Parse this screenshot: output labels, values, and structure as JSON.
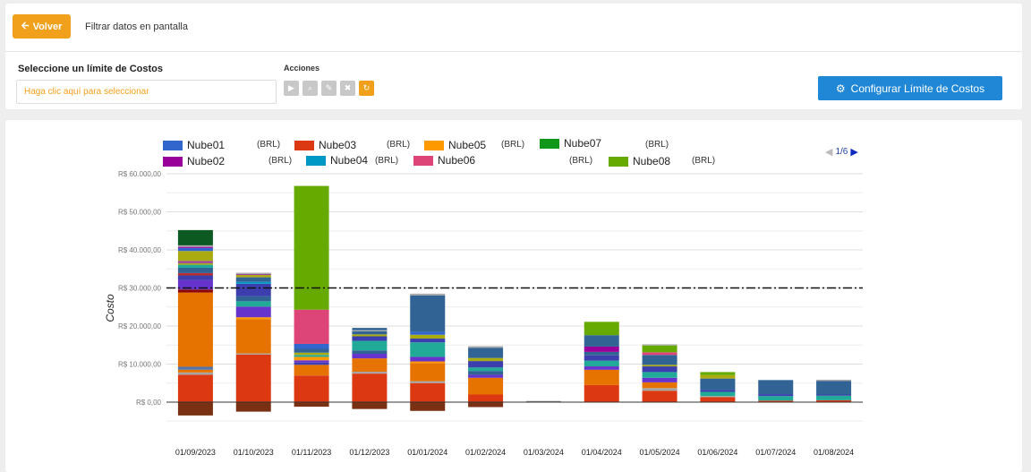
{
  "header": {
    "back_label": "Volver",
    "back_icon": "arrow-left-icon",
    "filter_label": "Filtrar datos en pantalla"
  },
  "limit": {
    "title": "Seleccione un límite de Costos",
    "placeholder": "Haga clic aquí para seleccionar"
  },
  "actions": {
    "label": "Acciones",
    "buttons": [
      {
        "icon": "play-icon",
        "glyph": "▶"
      },
      {
        "icon": "search-icon",
        "glyph": "⌕"
      },
      {
        "icon": "edit-icon",
        "glyph": "✎"
      },
      {
        "icon": "delete-icon",
        "glyph": "✖"
      },
      {
        "icon": "refresh-icon",
        "glyph": "↻"
      }
    ]
  },
  "config_button": {
    "label": "Configurar Límite de Costos",
    "icon": "gear-icon"
  },
  "legend": {
    "pager": "1/6",
    "items": [
      {
        "name": "Nube01",
        "unit": "(BRL)",
        "color": "#3366cc"
      },
      {
        "name": "Nube03",
        "unit": "(BRL)",
        "color": "#dc3912"
      },
      {
        "name": "Nube05",
        "unit": "(BRL)",
        "color": "#ff9900"
      },
      {
        "name": "Nube07",
        "unit": "(BRL)",
        "color": "#109618"
      },
      {
        "name": "Nube02",
        "unit": "(BRL)",
        "color": "#990099"
      },
      {
        "name": "Nube04",
        "unit": "(BRL)",
        "color": "#0099c6"
      },
      {
        "name": "Nube06",
        "unit": "(BRL)",
        "color": "#dd4477"
      },
      {
        "name": "",
        "unit": "(BRL)",
        "color": ""
      },
      {
        "name": "Nube08",
        "unit": "(BRL)",
        "color": "#66aa00"
      }
    ]
  },
  "chart_data": {
    "type": "bar",
    "stacked": true,
    "ylabel": "Costo",
    "ylim": [
      -4000,
      62000
    ],
    "yticks": [
      "R$ 0,00",
      "R$ 10.000,00",
      "R$ 20.000,00",
      "R$ 30.000,00",
      "R$ 40.000,00",
      "R$ 50.000,00",
      "R$ 60.000,00"
    ],
    "ytick_values": [
      0,
      10000,
      20000,
      30000,
      40000,
      50000,
      60000
    ],
    "limit_line": 30000,
    "grid": true,
    "categories": [
      "01/09/2023",
      "01/10/2023",
      "01/11/2023",
      "01/12/2023",
      "01/01/2024",
      "01/02/2024",
      "01/03/2024",
      "01/04/2024",
      "01/05/2024",
      "01/06/2024",
      "01/07/2024",
      "01/08/2024"
    ],
    "negatives": [
      -3500,
      -2500,
      -1200,
      -1800,
      -2300,
      -1300,
      0,
      0,
      0,
      0,
      0,
      0
    ],
    "segments": [
      [
        [
          7200,
          "#dc3912"
        ],
        [
          600,
          "#a5a5a5"
        ],
        [
          700,
          "#e67300"
        ],
        [
          800,
          "#5574a6"
        ],
        [
          19500,
          "#e67300"
        ],
        [
          800,
          "#8b0707"
        ],
        [
          2500,
          "#6633cc"
        ],
        [
          1200,
          "#3b3eac"
        ],
        [
          600,
          "#b82e2e"
        ],
        [
          1400,
          "#316395"
        ],
        [
          800,
          "#22aa99"
        ],
        [
          400,
          "#aaaa11"
        ],
        [
          600,
          "#994499"
        ],
        [
          2600,
          "#aaaa11"
        ],
        [
          800,
          "#3366cc"
        ],
        [
          300,
          "#990099"
        ],
        [
          400,
          "#aaaaaa"
        ],
        [
          4000,
          "#0c5922"
        ]
      ],
      [
        [
          12500,
          "#dc3912"
        ],
        [
          300,
          "#a5a5a5"
        ],
        [
          9000,
          "#e67300"
        ],
        [
          500,
          "#ff9900"
        ],
        [
          2800,
          "#6633cc"
        ],
        [
          1400,
          "#22aa99"
        ],
        [
          1300,
          "#316395"
        ],
        [
          3300,
          "#3b3eac"
        ],
        [
          500,
          "#0099c6"
        ],
        [
          1200,
          "#316395"
        ],
        [
          600,
          "#aaaa11"
        ],
        [
          300,
          "#994499"
        ],
        [
          300,
          "#aaaaaa"
        ]
      ],
      [
        [
          7000,
          "#dc3912"
        ],
        [
          2800,
          "#e67300"
        ],
        [
          600,
          "#3b3eac"
        ],
        [
          600,
          "#6633cc"
        ],
        [
          900,
          "#ff9900"
        ],
        [
          500,
          "#22aa99"
        ],
        [
          600,
          "#aaaa11"
        ],
        [
          1000,
          "#316395"
        ],
        [
          1300,
          "#3366cc"
        ],
        [
          9000,
          "#dd4477"
        ],
        [
          32500,
          "#66aa00"
        ]
      ],
      [
        [
          7500,
          "#dc3912"
        ],
        [
          500,
          "#a5a5a5"
        ],
        [
          3500,
          "#e67300"
        ],
        [
          1200,
          "#6633cc"
        ],
        [
          900,
          "#316395"
        ],
        [
          2500,
          "#22aa99"
        ],
        [
          1200,
          "#3b3eac"
        ],
        [
          500,
          "#aaaa11"
        ],
        [
          800,
          "#316395"
        ],
        [
          300,
          "#aaaaaa"
        ],
        [
          600,
          "#316395"
        ]
      ],
      [
        [
          5000,
          "#dc3912"
        ],
        [
          500,
          "#a5a5a5"
        ],
        [
          4800,
          "#e67300"
        ],
        [
          400,
          "#ff9900"
        ],
        [
          1200,
          "#6633cc"
        ],
        [
          3800,
          "#22aa99"
        ],
        [
          1000,
          "#3b3eac"
        ],
        [
          1000,
          "#aaaa11"
        ],
        [
          800,
          "#3366cc"
        ],
        [
          9500,
          "#316395"
        ],
        [
          500,
          "#aaaaaa"
        ]
      ],
      [
        [
          2000,
          "#dc3912"
        ],
        [
          4400,
          "#e67300"
        ],
        [
          800,
          "#6633cc"
        ],
        [
          1000,
          "#316395"
        ],
        [
          900,
          "#22aa99"
        ],
        [
          1700,
          "#3b3eac"
        ],
        [
          800,
          "#aaaa11"
        ],
        [
          2700,
          "#316395"
        ],
        [
          400,
          "#aaaaaa"
        ]
      ],
      [
        [
          300,
          "#888888"
        ]
      ],
      [
        [
          4500,
          "#dc3912"
        ],
        [
          4000,
          "#e67300"
        ],
        [
          900,
          "#6633cc"
        ],
        [
          1500,
          "#22aa99"
        ],
        [
          1400,
          "#3b3eac"
        ],
        [
          900,
          "#316395"
        ],
        [
          1400,
          "#990099"
        ],
        [
          3000,
          "#316395"
        ],
        [
          3500,
          "#66aa00"
        ]
      ],
      [
        [
          3000,
          "#dc3912"
        ],
        [
          700,
          "#a5a5a5"
        ],
        [
          1500,
          "#e67300"
        ],
        [
          1200,
          "#6633cc"
        ],
        [
          1500,
          "#22aa99"
        ],
        [
          1500,
          "#3b3eac"
        ],
        [
          400,
          "#aaaa11"
        ],
        [
          2600,
          "#316395"
        ],
        [
          700,
          "#dd4477"
        ],
        [
          1800,
          "#66aa00"
        ],
        [
          300,
          "#aaaaaa"
        ]
      ],
      [
        [
          1300,
          "#dc3912"
        ],
        [
          300,
          "#a5a5a5"
        ],
        [
          1100,
          "#22aa99"
        ],
        [
          500,
          "#3b3eac"
        ],
        [
          3000,
          "#316395"
        ],
        [
          900,
          "#aaaa11"
        ],
        [
          800,
          "#66aa00"
        ]
      ],
      [
        [
          400,
          "#dc3912"
        ],
        [
          1200,
          "#22aa99"
        ],
        [
          500,
          "#3b3eac"
        ],
        [
          3700,
          "#316395"
        ]
      ],
      [
        [
          500,
          "#dc3912"
        ],
        [
          1200,
          "#22aa99"
        ],
        [
          300,
          "#3b3eac"
        ],
        [
          3600,
          "#316395"
        ],
        [
          300,
          "#aaaaaa"
        ]
      ]
    ]
  }
}
